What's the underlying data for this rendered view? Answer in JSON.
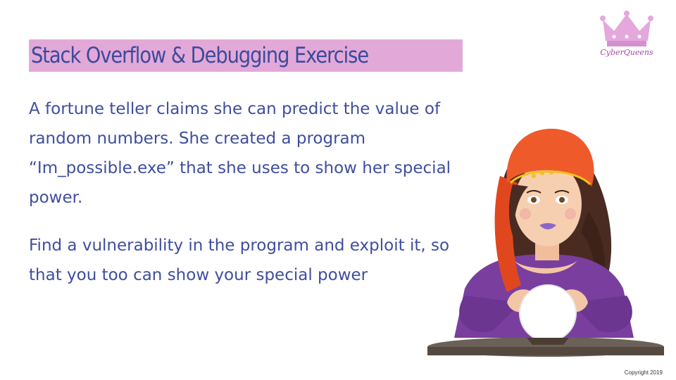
{
  "slide": {
    "title": "Stack Overflow & Debugging Exercise",
    "paragraph1_lines": [
      "A fortune teller claims she can predict the value of",
      "random numbers. She created a program",
      "“Im_possible.exe” that she uses to show her special",
      "power."
    ],
    "paragraph2_lines": [
      "Find a vulnerability in the program and exploit it, so",
      "that you too can show your special power"
    ],
    "logo_text": "CyberQueens",
    "copyright": "Copyright 2019",
    "illustration": "fortune-teller-with-crystal-ball"
  },
  "colors": {
    "title_highlight": "#e2a9d8",
    "text": "#3f4e9e",
    "logo": "#e4a8dc",
    "headscarf": "#ef5a2b",
    "dress": "#7a3f9e"
  }
}
